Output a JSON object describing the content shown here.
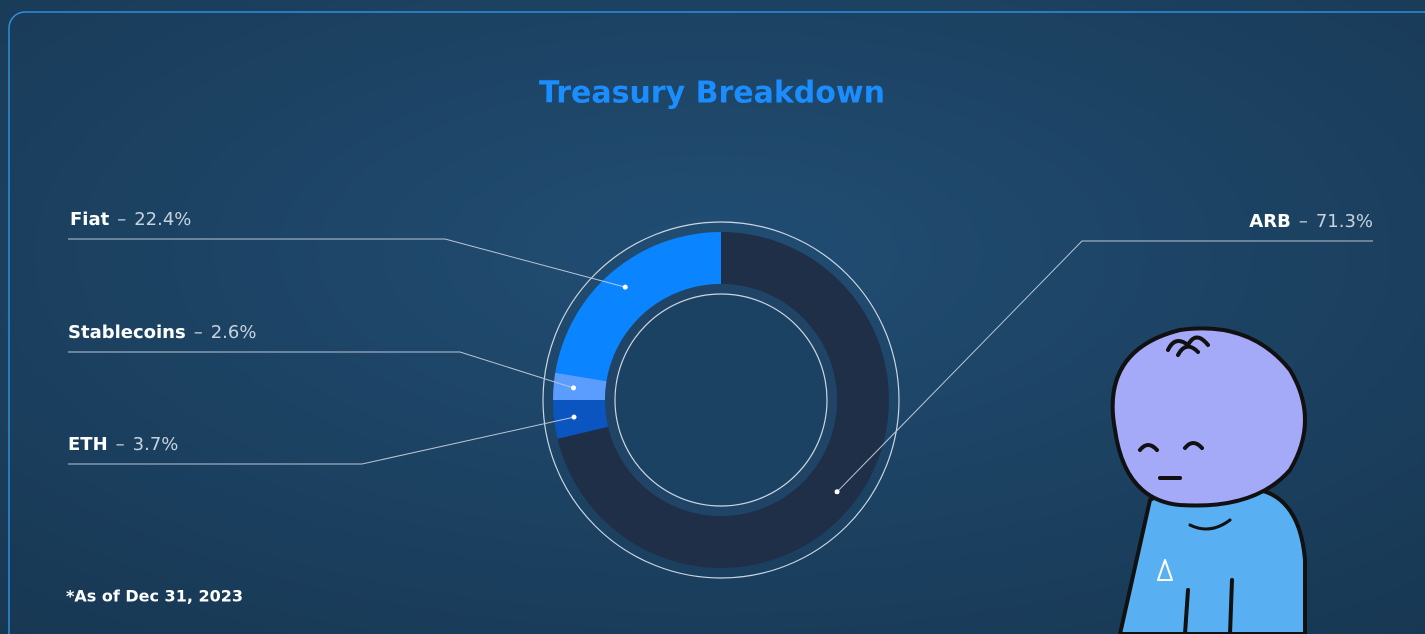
{
  "chart_data": {
    "type": "pie",
    "title": "Treasury Breakdown",
    "categories": [
      "ARB",
      "ETH",
      "Stablecoins",
      "Fiat"
    ],
    "values": [
      71.3,
      3.7,
      2.6,
      22.4
    ],
    "value_labels": [
      "71.3%",
      "3.7%",
      "2.6%",
      "22.4%"
    ],
    "colors": [
      "#202f48",
      "#0a55c0",
      "#5b9cff",
      "#0a84ff"
    ],
    "separator": "–",
    "footnote": "*As of Dec 31, 2023"
  }
}
